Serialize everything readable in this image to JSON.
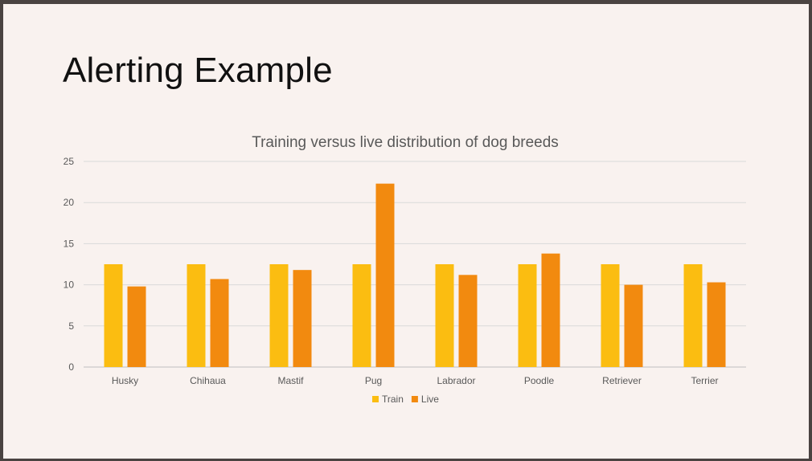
{
  "slide": {
    "title": "Alerting Example"
  },
  "chart_data": {
    "type": "bar",
    "title": "Training versus live distribution of dog breeds",
    "categories": [
      "Husky",
      "Chihaua",
      "Mastif",
      "Pug",
      "Labrador",
      "Poodle",
      "Retriever",
      "Terrier"
    ],
    "series": [
      {
        "name": "Train",
        "color": "#fbbd11",
        "values": [
          12.5,
          12.5,
          12.5,
          12.5,
          12.5,
          12.5,
          12.5,
          12.5
        ]
      },
      {
        "name": "Live",
        "color": "#f28a0f",
        "values": [
          9.8,
          10.7,
          11.8,
          22.3,
          11.2,
          13.8,
          10.0,
          10.3
        ]
      }
    ],
    "ylim": [
      0,
      25
    ],
    "yticks": [
      0,
      5,
      10,
      15,
      20,
      25
    ],
    "xlabel": "",
    "ylabel": "",
    "grid": true,
    "legend": "bottom"
  }
}
